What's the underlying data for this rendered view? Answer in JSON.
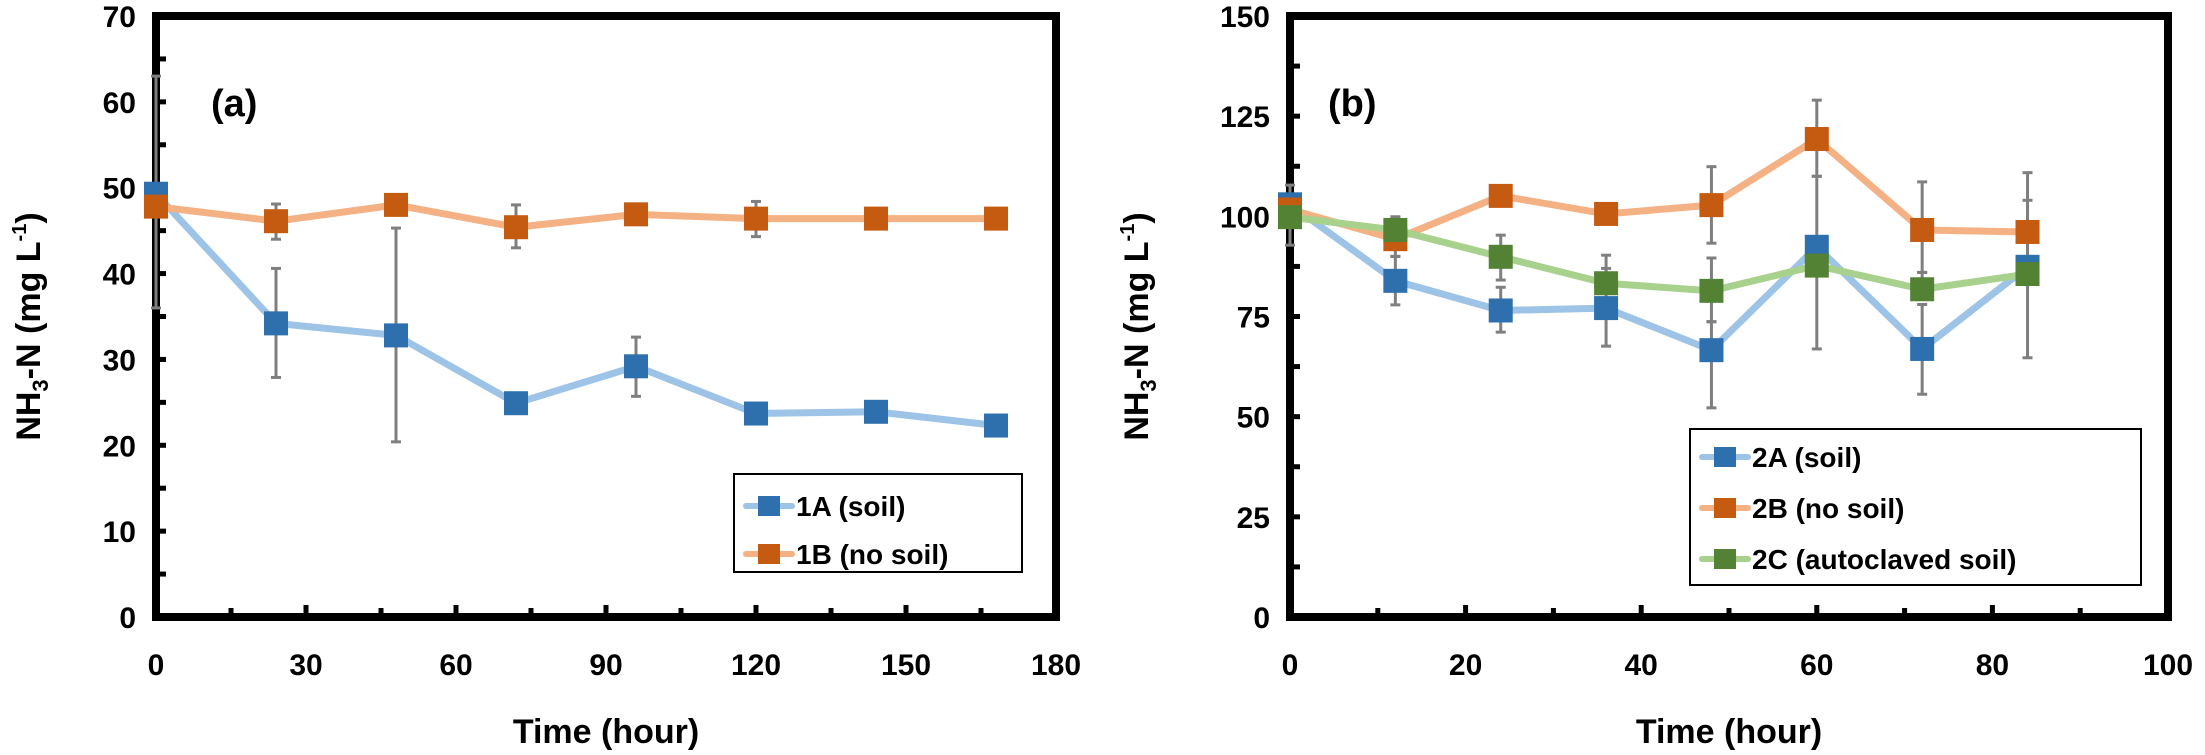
{
  "chart_data": [
    {
      "type": "line",
      "panel_label": "(a)",
      "title": "",
      "xlabel": "Time (hour)",
      "ylabel": "NH3-N (mg L-1)",
      "ylabel_parts": {
        "main": "NH",
        "sub": "3",
        "mid": "-N (mg L",
        "sup": "-1",
        "end": ")"
      },
      "xlim": [
        0,
        180
      ],
      "ylim": [
        0,
        70
      ],
      "xticks": [
        0,
        30,
        60,
        90,
        120,
        150,
        180
      ],
      "xtick_labels": [
        "0",
        "30",
        "60",
        "90",
        "120",
        "150",
        "180"
      ],
      "x_minor_step": 15,
      "yticks": [
        0,
        10,
        20,
        30,
        40,
        50,
        60,
        70
      ],
      "ytick_labels": [
        "0",
        "10",
        "20",
        "30",
        "40",
        "50",
        "60",
        "70"
      ],
      "y_minor_step": 5,
      "grid": false,
      "legend_position": "bottom-right",
      "series": [
        {
          "name": "1A (soil)",
          "marker_color": "#2e6fad",
          "line_color": "#9dc3e6",
          "x": [
            0,
            24,
            48,
            72,
            96,
            120,
            144,
            168
          ],
          "y": [
            49.3,
            34.2,
            32.8,
            24.9,
            29.2,
            23.7,
            23.9,
            22.3
          ],
          "err_low": [
            36.0,
            27.9,
            20.4,
            null,
            25.7,
            null,
            null,
            null
          ],
          "err_high": [
            63.0,
            40.6,
            45.3,
            null,
            32.6,
            null,
            null,
            null
          ]
        },
        {
          "name": "1B (no soil)",
          "marker_color": "#c55a11",
          "line_color": "#f4b183",
          "x": [
            0,
            24,
            48,
            72,
            96,
            120,
            144,
            168
          ],
          "y": [
            47.8,
            46.1,
            48.0,
            45.4,
            46.9,
            46.4,
            46.4,
            46.4
          ],
          "err_low": [
            null,
            44.0,
            null,
            43.0,
            null,
            44.3,
            null,
            null
          ],
          "err_high": [
            null,
            48.1,
            null,
            48.0,
            null,
            48.4,
            null,
            null
          ]
        }
      ]
    },
    {
      "type": "line",
      "panel_label": "(b)",
      "title": "",
      "xlabel": "Time (hour)",
      "ylabel": "NH3-N (mg L-1)",
      "ylabel_parts": {
        "main": "NH",
        "sub": "3",
        "mid": "-N (mg L",
        "sup": "-1",
        "end": ")"
      },
      "xlim": [
        0,
        100
      ],
      "ylim": [
        0,
        150
      ],
      "xticks": [
        0,
        20,
        40,
        60,
        80,
        100
      ],
      "xtick_labels": [
        "0",
        "20",
        "40",
        "60",
        "80",
        "100"
      ],
      "x_minor_step": 10,
      "yticks": [
        0,
        25,
        50,
        75,
        100,
        125,
        150
      ],
      "ytick_labels": [
        "0",
        "25",
        "50",
        "75",
        "100",
        "125",
        "150"
      ],
      "y_minor_step": 12.5,
      "grid": false,
      "legend_position": "bottom-right",
      "series": [
        {
          "name": "2A (soil)",
          "marker_color": "#2e6fad",
          "line_color": "#9dc3e6",
          "x": [
            0,
            12,
            24,
            36,
            48,
            60,
            72,
            84
          ],
          "y": [
            103.0,
            83.9,
            76.5,
            77.1,
            66.6,
            92.4,
            66.9,
            87.4
          ],
          "err_low": [
            null,
            77.9,
            71.1,
            67.6,
            52.2,
            66.9,
            55.6,
            null
          ],
          "err_high": [
            null,
            90.0,
            82.3,
            87.0,
            73.7,
            110.0,
            78.0,
            null
          ]
        },
        {
          "name": "2B (no soil)",
          "marker_color": "#c55a11",
          "line_color": "#f4b183",
          "x": [
            0,
            12,
            24,
            36,
            48,
            60,
            72,
            84
          ],
          "y": [
            101.7,
            94.3,
            105.1,
            100.6,
            102.8,
            119.3,
            96.6,
            96.1
          ],
          "err_low": [
            92.8,
            null,
            null,
            null,
            93.3,
            110.0,
            86.0,
            64.7
          ],
          "err_high": [
            107.8,
            null,
            null,
            null,
            112.4,
            129.0,
            108.6,
            110.9
          ]
        },
        {
          "name": "2C (autoclaved soil)",
          "marker_color": "#548235",
          "line_color": "#a9d18e",
          "x": [
            0,
            12,
            24,
            36,
            48,
            60,
            72,
            84
          ],
          "y": [
            99.8,
            96.6,
            89.9,
            83.3,
            81.4,
            87.7,
            81.8,
            85.6
          ],
          "err_low": [
            null,
            90.0,
            84.1,
            null,
            73.7,
            null,
            null,
            null
          ],
          "err_high": [
            null,
            99.9,
            95.3,
            90.3,
            89.6,
            null,
            86.0,
            104.0
          ]
        }
      ]
    }
  ]
}
